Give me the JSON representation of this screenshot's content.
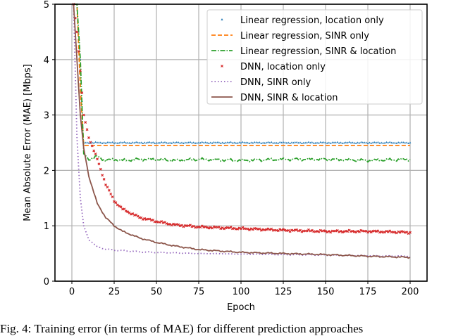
{
  "chart_data": {
    "type": "line",
    "title": "",
    "xlabel": "Epoch",
    "ylabel": "Mean Absolute Error (MAE) [Mbps]",
    "xlim": [
      -10,
      210
    ],
    "ylim": [
      0,
      5
    ],
    "xticks": [
      0,
      25,
      50,
      75,
      100,
      125,
      150,
      175,
      200
    ],
    "yticks": [
      0,
      1,
      2,
      3,
      4,
      5
    ],
    "grid": true,
    "legend_position": "upper right",
    "x": [
      1,
      3,
      5,
      7,
      10,
      15,
      20,
      25,
      30,
      40,
      50,
      60,
      75,
      100,
      125,
      150,
      175,
      200
    ],
    "series": [
      {
        "name": "Linear regression, location only",
        "color": "#1f77b4",
        "style": "marker-triangle",
        "values": [
          5.0,
          5.0,
          4.0,
          2.5,
          2.5,
          2.5,
          2.5,
          2.5,
          2.5,
          2.5,
          2.5,
          2.5,
          2.5,
          2.5,
          2.5,
          2.5,
          2.5,
          2.5
        ]
      },
      {
        "name": "Linear regression, SINR only",
        "color": "#ff7f0e",
        "style": "dashed",
        "values": [
          5.0,
          5.0,
          3.5,
          2.45,
          2.45,
          2.45,
          2.45,
          2.45,
          2.45,
          2.45,
          2.45,
          2.45,
          2.45,
          2.45,
          2.45,
          2.45,
          2.45,
          2.45
        ]
      },
      {
        "name": "Linear regression, SINR & location",
        "color": "#2ca02c",
        "style": "dashdot",
        "values": [
          5.0,
          5.0,
          4.0,
          2.3,
          2.2,
          2.25,
          2.18,
          2.2,
          2.18,
          2.2,
          2.2,
          2.18,
          2.2,
          2.18,
          2.2,
          2.2,
          2.18,
          2.2
        ]
      },
      {
        "name": "DNN, location only",
        "color": "#d62728",
        "style": "marker-x",
        "values": [
          5.0,
          4.5,
          3.8,
          3.0,
          2.6,
          2.2,
          1.75,
          1.45,
          1.3,
          1.15,
          1.08,
          1.02,
          0.98,
          0.95,
          0.92,
          0.9,
          0.9,
          0.88
        ]
      },
      {
        "name": "DNN, SINR only",
        "color": "#9467bd",
        "style": "dotted",
        "values": [
          5.0,
          2.6,
          1.5,
          1.0,
          0.75,
          0.62,
          0.58,
          0.56,
          0.55,
          0.53,
          0.52,
          0.51,
          0.5,
          0.49,
          0.48,
          0.47,
          0.46,
          0.45
        ]
      },
      {
        "name": "DNN, SINR & location",
        "color": "#8c564b",
        "style": "solid",
        "values": [
          5.0,
          4.0,
          3.0,
          2.4,
          1.9,
          1.4,
          1.15,
          1.0,
          0.9,
          0.78,
          0.7,
          0.64,
          0.57,
          0.52,
          0.5,
          0.48,
          0.45,
          0.43
        ]
      }
    ]
  },
  "caption": "Fig. 4: Training error (in terms of MAE) for different prediction approaches"
}
